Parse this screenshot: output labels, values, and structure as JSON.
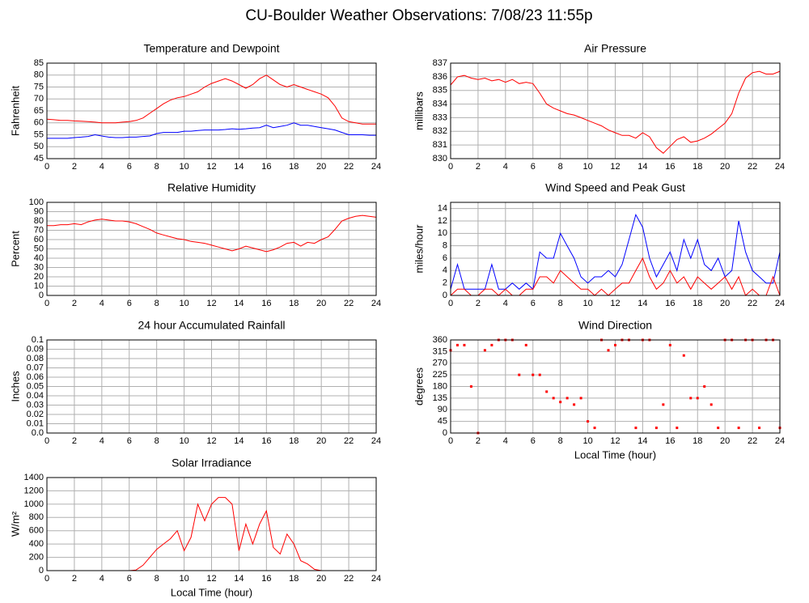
{
  "page_title": "CU-Boulder Weather Observations: 7/08/23 11:55p",
  "chart_data": [
    {
      "type": "line",
      "title": "Temperature and Dewpoint",
      "ylabel": "Fahrenheit",
      "x": [
        0,
        0.5,
        1,
        1.5,
        2,
        2.5,
        3,
        3.5,
        4,
        4.5,
        5,
        5.5,
        6,
        6.5,
        7,
        7.5,
        8,
        8.5,
        9,
        9.5,
        10,
        10.5,
        11,
        11.5,
        12,
        12.5,
        13,
        13.5,
        14,
        14.5,
        15,
        15.5,
        16,
        16.5,
        17,
        17.5,
        18,
        18.5,
        19,
        19.5,
        20,
        20.5,
        21,
        21.5,
        22,
        22.5,
        23,
        23.5,
        24
      ],
      "series": [
        {
          "name": "Temperature",
          "color": "#ff0000",
          "values": [
            61.5,
            61.3,
            61,
            61,
            60.8,
            60.7,
            60.5,
            60.3,
            60,
            60,
            60,
            60.3,
            60.5,
            61,
            62,
            64,
            66,
            68,
            69.5,
            70.5,
            71,
            72,
            73,
            75,
            76.5,
            77.5,
            78.5,
            77.5,
            76,
            74.5,
            76,
            78.5,
            80,
            78,
            76,
            75,
            76,
            75,
            74,
            73,
            72,
            70.5,
            67,
            62,
            60.5,
            60,
            59.5,
            59.5,
            59.5
          ]
        },
        {
          "name": "Dewpoint",
          "color": "#0000ff",
          "values": [
            53.5,
            53.5,
            53.5,
            53.5,
            53.8,
            54,
            54.3,
            55,
            54.5,
            54,
            53.8,
            53.8,
            54,
            54,
            54.3,
            54.5,
            55.5,
            56,
            56,
            56,
            56.5,
            56.5,
            56.8,
            57,
            57,
            57,
            57.2,
            57.5,
            57.3,
            57.5,
            57.8,
            58,
            59,
            58,
            58.5,
            59,
            60,
            59,
            59,
            58.5,
            58,
            57.5,
            57,
            56,
            55,
            55,
            55,
            54.8,
            54.8
          ]
        }
      ],
      "xlim": [
        0,
        24
      ],
      "ylim": [
        45,
        85
      ],
      "xticks": [
        0,
        2,
        4,
        6,
        8,
        10,
        12,
        14,
        16,
        18,
        20,
        22,
        24
      ],
      "yticks": [
        45,
        50,
        55,
        60,
        65,
        70,
        75,
        80,
        85
      ],
      "grid": true
    },
    {
      "type": "line",
      "title": "Air Pressure",
      "ylabel": "millibars",
      "x": [
        0,
        0.5,
        1,
        1.5,
        2,
        2.5,
        3,
        3.5,
        4,
        4.5,
        5,
        5.5,
        6,
        6.5,
        7,
        7.5,
        8,
        8.5,
        9,
        9.5,
        10,
        10.5,
        11,
        11.5,
        12,
        12.5,
        13,
        13.5,
        14,
        14.5,
        15,
        15.5,
        16,
        16.5,
        17,
        17.5,
        18,
        18.5,
        19,
        19.5,
        20,
        20.5,
        21,
        21.5,
        22,
        22.5,
        23,
        23.5,
        24
      ],
      "series": [
        {
          "name": "Pressure",
          "color": "#ff0000",
          "values": [
            835.4,
            836,
            836.1,
            835.9,
            835.8,
            835.9,
            835.7,
            835.8,
            835.6,
            835.8,
            835.5,
            835.6,
            835.5,
            834.8,
            834,
            833.7,
            833.5,
            833.3,
            833.2,
            833,
            832.8,
            832.6,
            832.4,
            832.1,
            831.9,
            831.7,
            831.7,
            831.5,
            831.9,
            831.6,
            830.8,
            830.4,
            830.9,
            831.4,
            831.6,
            831.2,
            831.3,
            831.5,
            831.8,
            832.2,
            832.6,
            833.3,
            834.8,
            835.9,
            836.3,
            836.4,
            836.2,
            836.2,
            836.4
          ]
        }
      ],
      "xlim": [
        0,
        24
      ],
      "ylim": [
        830,
        837
      ],
      "xticks": [
        0,
        2,
        4,
        6,
        8,
        10,
        12,
        14,
        16,
        18,
        20,
        22,
        24
      ],
      "yticks": [
        830,
        831,
        832,
        833,
        834,
        835,
        836,
        837
      ],
      "grid": true
    },
    {
      "type": "line",
      "title": "Relative Humidity",
      "ylabel": "Percent",
      "x": [
        0,
        0.5,
        1,
        1.5,
        2,
        2.5,
        3,
        3.5,
        4,
        4.5,
        5,
        5.5,
        6,
        6.5,
        7,
        7.5,
        8,
        8.5,
        9,
        9.5,
        10,
        10.5,
        11,
        11.5,
        12,
        12.5,
        13,
        13.5,
        14,
        14.5,
        15,
        15.5,
        16,
        16.5,
        17,
        17.5,
        18,
        18.5,
        19,
        19.5,
        20,
        20.5,
        21,
        21.5,
        22,
        22.5,
        23,
        23.5,
        24
      ],
      "series": [
        {
          "name": "Humidity",
          "color": "#ff0000",
          "values": [
            75,
            75,
            76,
            76,
            77,
            76,
            79,
            81,
            82,
            81,
            80,
            80,
            79,
            77,
            74,
            71,
            67,
            65,
            63,
            61,
            60,
            58,
            57,
            56,
            54,
            52,
            50,
            48,
            50,
            53,
            51,
            49,
            47,
            49,
            52,
            56,
            57,
            53,
            57,
            56,
            60,
            63,
            71,
            80,
            83,
            85,
            86,
            85,
            84
          ]
        }
      ],
      "xlim": [
        0,
        24
      ],
      "ylim": [
        0,
        100
      ],
      "xticks": [
        0,
        2,
        4,
        6,
        8,
        10,
        12,
        14,
        16,
        18,
        20,
        22,
        24
      ],
      "yticks": [
        0,
        10,
        20,
        30,
        40,
        50,
        60,
        70,
        80,
        90,
        100
      ],
      "grid": true
    },
    {
      "type": "line",
      "title": "Wind Speed and Peak Gust",
      "ylabel": "miles/hour",
      "x": [
        0,
        0.5,
        1,
        1.5,
        2,
        2.5,
        3,
        3.5,
        4,
        4.5,
        5,
        5.5,
        6,
        6.5,
        7,
        7.5,
        8,
        8.5,
        9,
        9.5,
        10,
        10.5,
        11,
        11.5,
        12,
        12.5,
        13,
        13.5,
        14,
        14.5,
        15,
        15.5,
        16,
        16.5,
        17,
        17.5,
        18,
        18.5,
        19,
        19.5,
        20,
        20.5,
        21,
        21.5,
        22,
        22.5,
        23,
        23.5,
        24
      ],
      "series": [
        {
          "name": "Peak Gust",
          "color": "#0000ff",
          "values": [
            1,
            5,
            1,
            1,
            1,
            1,
            5,
            1,
            1,
            2,
            1,
            2,
            1,
            7,
            6,
            6,
            10,
            8,
            6,
            3,
            2,
            3,
            3,
            4,
            3,
            5,
            9,
            13,
            11,
            6,
            3,
            5,
            7,
            4,
            9,
            6,
            9,
            5,
            4,
            6,
            3,
            4,
            12,
            7,
            4,
            3,
            2,
            2,
            7
          ]
        },
        {
          "name": "Wind Speed",
          "color": "#ff0000",
          "values": [
            0,
            1,
            1,
            0,
            0,
            1,
            1,
            0,
            1,
            0,
            0,
            1,
            1,
            3,
            3,
            2,
            4,
            3,
            2,
            1,
            1,
            0,
            1,
            0,
            1,
            2,
            2,
            4,
            6,
            3,
            1,
            2,
            4,
            2,
            3,
            1,
            3,
            2,
            1,
            2,
            3,
            1,
            3,
            0,
            1,
            0,
            0,
            3,
            0
          ]
        }
      ],
      "xlim": [
        0,
        24
      ],
      "ylim": [
        0,
        15
      ],
      "xticks": [
        0,
        2,
        4,
        6,
        8,
        10,
        12,
        14,
        16,
        18,
        20,
        22,
        24
      ],
      "yticks": [
        0,
        2,
        4,
        6,
        8,
        10,
        12,
        14
      ],
      "grid": true
    },
    {
      "type": "line",
      "title": "24 hour Accumulated Rainfall",
      "ylabel": "Inches",
      "x": [
        0,
        24
      ],
      "series": [
        {
          "name": "Rainfall",
          "color": "#ff0000",
          "values": [
            0,
            0
          ]
        }
      ],
      "xlim": [
        0,
        24
      ],
      "ylim": [
        0,
        0.1
      ],
      "xticks": [
        0,
        2,
        4,
        6,
        8,
        10,
        12,
        14,
        16,
        18,
        20,
        22,
        24
      ],
      "yticks": [
        {
          "value": 0,
          "label": "0.0"
        },
        0.01,
        0.02,
        0.03,
        0.04,
        0.05,
        0.06,
        0.07,
        0.08,
        0.09,
        0.1
      ],
      "grid": true
    },
    {
      "type": "scatter",
      "title": "Wind Direction",
      "ylabel": "degrees",
      "xlabel": "Local Time (hour)",
      "x": [
        0,
        0.5,
        1,
        1.5,
        2,
        2.5,
        3,
        3.5,
        4,
        4.5,
        5,
        5.5,
        6,
        6.5,
        7,
        7.5,
        8,
        8.5,
        9,
        9.5,
        10,
        10.5,
        11,
        11.5,
        12,
        12.5,
        13,
        13.5,
        14,
        14.5,
        15,
        15.5,
        16,
        16.5,
        17,
        17.5,
        18,
        18.5,
        19,
        19.5,
        20,
        20.5,
        21,
        21.5,
        22,
        22.5,
        23,
        23.5,
        24
      ],
      "series": [
        {
          "name": "Direction",
          "color": "#ff0000",
          "values": [
            320,
            340,
            340,
            180,
            0,
            320,
            340,
            360,
            360,
            360,
            225,
            340,
            225,
            225,
            160,
            135,
            120,
            135,
            110,
            135,
            45,
            20,
            360,
            320,
            340,
            360,
            360,
            20,
            360,
            360,
            20,
            110,
            340,
            20,
            300,
            135,
            135,
            180,
            110,
            20,
            360,
            360,
            20,
            360,
            360,
            20,
            360,
            360,
            20
          ]
        }
      ],
      "xlim": [
        0,
        24
      ],
      "ylim": [
        0,
        360
      ],
      "xticks": [
        0,
        2,
        4,
        6,
        8,
        10,
        12,
        14,
        16,
        18,
        20,
        22,
        24
      ],
      "yticks": [
        0,
        45,
        90,
        135,
        180,
        225,
        270,
        315,
        360
      ],
      "grid": true
    },
    {
      "type": "line",
      "title": "Solar Irradiance",
      "ylabel": "W/m²",
      "xlabel": "Local Time (hour)",
      "x": [
        0,
        0.5,
        1,
        1.5,
        2,
        2.5,
        3,
        3.5,
        4,
        4.5,
        5,
        5.5,
        6,
        6.5,
        7,
        7.5,
        8,
        8.5,
        9,
        9.5,
        10,
        10.5,
        11,
        11.5,
        12,
        12.5,
        13,
        13.5,
        14,
        14.5,
        15,
        15.5,
        16,
        16.5,
        17,
        17.5,
        18,
        18.5,
        19,
        19.5,
        20,
        20.5,
        21,
        21.5,
        22,
        22.5,
        23,
        23.5,
        24
      ],
      "series": [
        {
          "name": "Solar",
          "color": "#ff0000",
          "values": [
            0,
            0,
            0,
            0,
            0,
            0,
            0,
            0,
            0,
            0,
            0,
            0,
            0,
            10,
            80,
            200,
            320,
            400,
            480,
            600,
            300,
            500,
            1000,
            750,
            1000,
            1100,
            1100,
            1000,
            300,
            700,
            400,
            700,
            900,
            350,
            250,
            550,
            400,
            150,
            100,
            20,
            0,
            0,
            0,
            0,
            0,
            0,
            0,
            0,
            0
          ]
        }
      ],
      "xlim": [
        0,
        24
      ],
      "ylim": [
        0,
        1400
      ],
      "xticks": [
        0,
        2,
        4,
        6,
        8,
        10,
        12,
        14,
        16,
        18,
        20,
        22,
        24
      ],
      "yticks": [
        0,
        200,
        400,
        600,
        800,
        1000,
        1200,
        1400
      ],
      "grid": true
    }
  ]
}
